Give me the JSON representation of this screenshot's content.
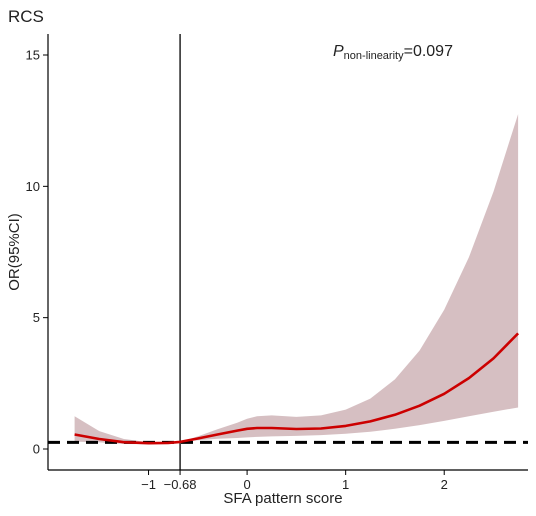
{
  "chart_data": {
    "type": "line",
    "corner_label": "RCS",
    "title": "",
    "xlabel": "SFA pattern score",
    "ylabel": "OR(95%CI)",
    "annotation": {
      "prefix": "P",
      "subscript": "non-linearity",
      "suffix": "=0.097"
    },
    "xlim": [
      -2.02,
      2.85
    ],
    "ylim": [
      -0.8,
      15.8
    ],
    "xticks": [
      {
        "value": -1,
        "label": "−1"
      },
      {
        "value": -0.68,
        "label": "−0.68"
      },
      {
        "value": 0,
        "label": "0"
      },
      {
        "value": 1,
        "label": "1"
      },
      {
        "value": 2,
        "label": "2"
      }
    ],
    "yticks": [
      {
        "value": 0,
        "label": "0"
      },
      {
        "value": 5,
        "label": "5"
      },
      {
        "value": 10,
        "label": "10"
      },
      {
        "value": 15,
        "label": "15"
      }
    ],
    "reference_vline": -0.68,
    "reference_hline": 0.25,
    "line_color": "#cc0000",
    "band_color": "#b58a8f",
    "series": [
      {
        "x": [
          -1.75,
          -1.5,
          -1.25,
          -1.0,
          -0.8,
          -0.68,
          -0.5,
          -0.3,
          -0.1,
          0.0,
          0.1,
          0.25,
          0.5,
          0.75,
          1.0,
          1.25,
          1.5,
          1.75,
          2.0,
          2.25,
          2.5,
          2.75
        ],
        "y": [
          0.55,
          0.38,
          0.26,
          0.22,
          0.23,
          0.27,
          0.4,
          0.55,
          0.7,
          0.77,
          0.8,
          0.8,
          0.76,
          0.78,
          0.88,
          1.05,
          1.3,
          1.65,
          2.1,
          2.7,
          3.45,
          4.4
        ],
        "lower": [
          0.28,
          0.25,
          0.19,
          0.18,
          0.21,
          0.27,
          0.33,
          0.39,
          0.42,
          0.44,
          0.46,
          0.48,
          0.5,
          0.53,
          0.58,
          0.66,
          0.77,
          0.91,
          1.07,
          1.25,
          1.42,
          1.58
        ],
        "upper": [
          1.25,
          0.68,
          0.38,
          0.26,
          0.25,
          0.27,
          0.48,
          0.75,
          1.0,
          1.15,
          1.25,
          1.28,
          1.22,
          1.28,
          1.5,
          1.92,
          2.65,
          3.75,
          5.3,
          7.3,
          9.8,
          12.75
        ]
      }
    ]
  }
}
